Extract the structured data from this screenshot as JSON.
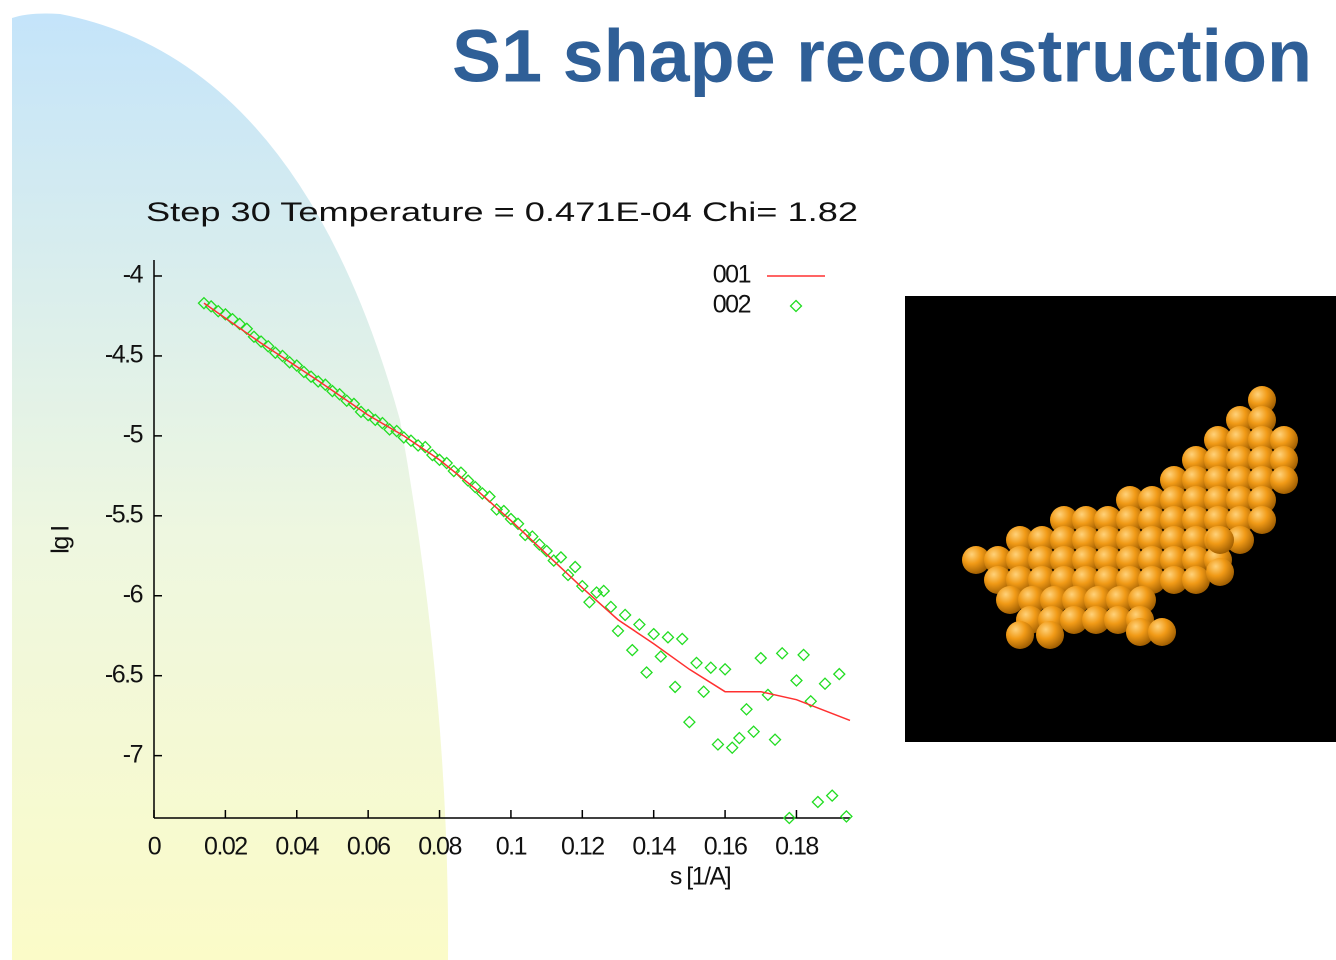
{
  "slide_title": "S1 shape reconstruction",
  "chart_data": {
    "type": "scatter",
    "title": "Step  30  Temperature =  0.471E-04    Chi=   1.82",
    "xlabel": "s [1/A]",
    "ylabel": "lg I",
    "xlim": [
      0,
      0.195
    ],
    "ylim": [
      -7.39,
      -3.9
    ],
    "xticks": [
      0,
      0.02,
      0.04,
      0.06,
      0.08,
      0.1,
      0.12,
      0.14,
      0.16,
      0.18
    ],
    "yticks": [
      -4,
      -4.5,
      -5,
      -5.5,
      -6,
      -6.5,
      -7
    ],
    "legend": "upper right",
    "series": [
      {
        "name": "001",
        "color": "#ff3030",
        "marker": "line",
        "x": [
          0.014,
          0.03,
          0.045,
          0.06,
          0.07,
          0.08,
          0.09,
          0.1,
          0.11,
          0.12,
          0.13,
          0.14,
          0.15,
          0.16,
          0.17,
          0.18,
          0.195
        ],
        "values": [
          -4.17,
          -4.42,
          -4.64,
          -4.87,
          -5.0,
          -5.15,
          -5.33,
          -5.53,
          -5.74,
          -5.95,
          -6.15,
          -6.3,
          -6.46,
          -6.6,
          -6.6,
          -6.65,
          -6.78
        ]
      },
      {
        "name": "002",
        "color": "#22dd22",
        "marker": "diamond",
        "x": [
          0.014,
          0.016,
          0.018,
          0.02,
          0.022,
          0.024,
          0.026,
          0.028,
          0.03,
          0.032,
          0.034,
          0.036,
          0.038,
          0.04,
          0.042,
          0.044,
          0.046,
          0.048,
          0.05,
          0.052,
          0.054,
          0.056,
          0.058,
          0.06,
          0.062,
          0.064,
          0.066,
          0.068,
          0.07,
          0.072,
          0.074,
          0.076,
          0.078,
          0.08,
          0.082,
          0.084,
          0.086,
          0.088,
          0.09,
          0.092,
          0.094,
          0.096,
          0.098,
          0.1,
          0.102,
          0.104,
          0.106,
          0.108,
          0.11,
          0.112,
          0.114,
          0.116,
          0.118,
          0.12,
          0.122,
          0.124,
          0.126,
          0.128,
          0.13,
          0.132,
          0.134,
          0.136,
          0.138,
          0.14,
          0.142,
          0.144,
          0.146,
          0.148,
          0.15,
          0.152,
          0.154,
          0.156,
          0.158,
          0.16,
          0.162,
          0.164,
          0.166,
          0.168,
          0.17,
          0.172,
          0.174,
          0.176,
          0.178,
          0.18,
          0.182,
          0.184,
          0.186,
          0.188,
          0.19,
          0.192,
          0.194
        ],
        "values": [
          -4.17,
          -4.19,
          -4.22,
          -4.24,
          -4.27,
          -4.3,
          -4.33,
          -4.38,
          -4.41,
          -4.44,
          -4.48,
          -4.5,
          -4.54,
          -4.56,
          -4.6,
          -4.63,
          -4.66,
          -4.68,
          -4.72,
          -4.74,
          -4.78,
          -4.8,
          -4.85,
          -4.87,
          -4.9,
          -4.92,
          -4.96,
          -4.97,
          -5.01,
          -5.03,
          -5.06,
          -5.07,
          -5.12,
          -5.15,
          -5.17,
          -5.22,
          -5.23,
          -5.28,
          -5.32,
          -5.36,
          -5.38,
          -5.46,
          -5.47,
          -5.52,
          -5.55,
          -5.62,
          -5.63,
          -5.68,
          -5.72,
          -5.78,
          -5.76,
          -5.87,
          -5.82,
          -5.94,
          -6.04,
          -5.98,
          -5.97,
          -6.07,
          -6.22,
          -6.12,
          -6.34,
          -6.18,
          -6.48,
          -6.24,
          -6.38,
          -6.26,
          -6.57,
          -6.27,
          -6.79,
          -6.42,
          -6.6,
          -6.45,
          -6.93,
          -6.46,
          -6.95,
          -6.89,
          -6.71,
          -6.85,
          -6.39,
          -6.62,
          -6.9,
          -6.36,
          -7.39,
          -6.53,
          -6.37,
          -6.66,
          -7.29,
          -6.55,
          -7.25,
          -6.49,
          -7.38
        ]
      }
    ]
  }
}
